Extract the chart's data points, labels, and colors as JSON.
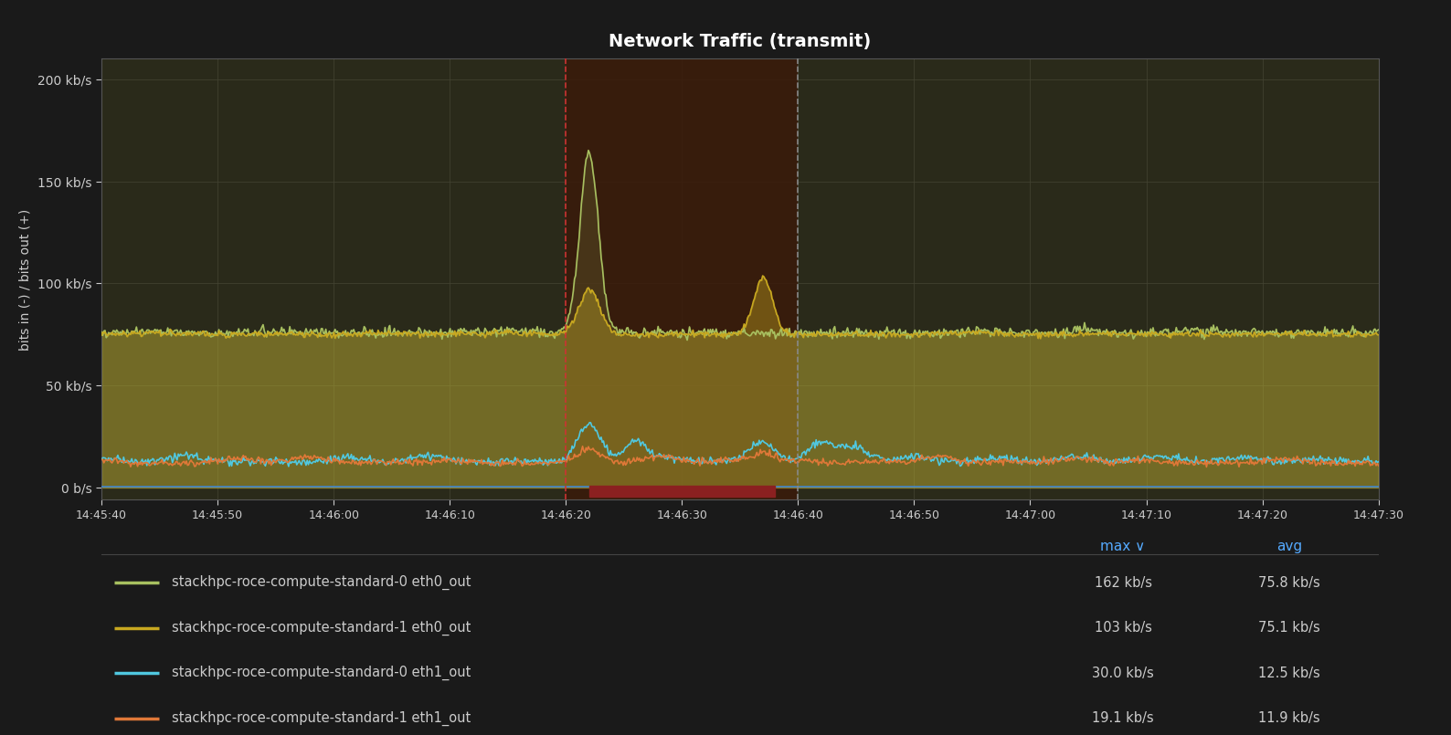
{
  "title": "Network Traffic (transmit)",
  "ylabel": "bits in (-) / bits out (+)",
  "background_color": "#1a1a1a",
  "plot_bg_color": "#2a2a1a",
  "grid_color": "#444433",
  "text_color": "#cccccc",
  "ylim": [
    0,
    210000
  ],
  "yticks": [
    0,
    50000,
    100000,
    150000,
    200000
  ],
  "ytick_labels": [
    "0 b/s",
    "50 kb/s",
    "100 kb/s",
    "150 kb/s",
    "200 kb/s"
  ],
  "time_start": 0,
  "time_end": 110,
  "xtick_positions": [
    0,
    10,
    20,
    30,
    40,
    50,
    60,
    70,
    80,
    90,
    100,
    110
  ],
  "xtick_labels": [
    "14:45:40",
    "14:45:50",
    "14:46:00",
    "14:46:10",
    "14:46:20",
    "14:46:30",
    "14:46:40",
    "14:46:50",
    "14:47:00",
    "14:47:10",
    "14:47:20",
    "14:47:30"
  ],
  "red_vline_x": 40,
  "black_vline_x": 60,
  "shade_x_start": 40,
  "shade_x_end": 60,
  "red_hbar_x_start": 42,
  "red_hbar_x_end": 58,
  "colors": {
    "eth0_out_0": "#a8c060",
    "eth0_out_1": "#c8a820",
    "eth1_out_0": "#50c8e0",
    "eth1_out_1": "#e07838",
    "blue_line": "#4488cc"
  },
  "legend_entries": [
    {
      "label": "stackhpc-roce-compute-standard-0 eth0_out",
      "color": "#a8c060",
      "max": "162 kb/s",
      "avg": "75.8 kb/s"
    },
    {
      "label": "stackhpc-roce-compute-standard-1 eth0_out",
      "color": "#c8a820",
      "max": "103 kb/s",
      "avg": "75.1 kb/s"
    },
    {
      "label": "stackhpc-roce-compute-standard-0 eth1_out",
      "color": "#50c8e0",
      "max": "30.0 kb/s",
      "avg": "12.5 kb/s"
    },
    {
      "label": "stackhpc-roce-compute-standard-1 eth1_out",
      "color": "#e07838",
      "max": "19.1 kb/s",
      "avg": "11.9 kb/s"
    }
  ]
}
